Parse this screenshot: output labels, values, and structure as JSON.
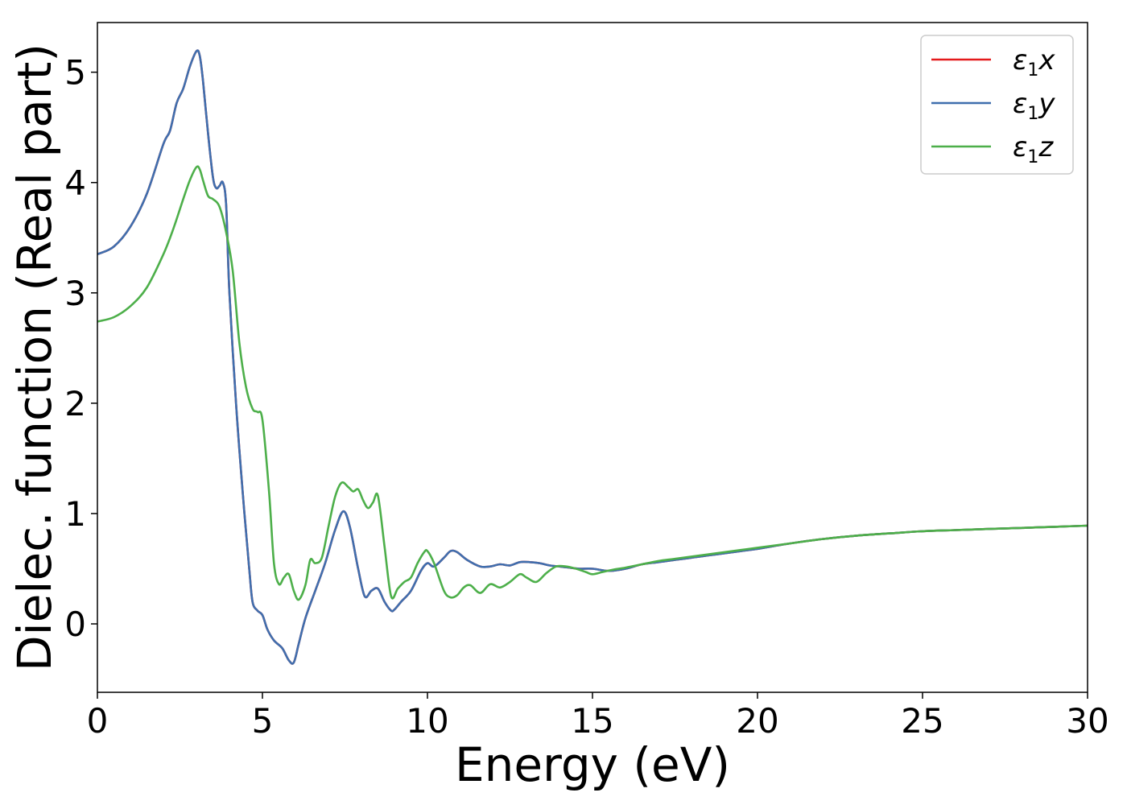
{
  "chart_data": {
    "type": "line",
    "xlabel": "Energy (eV)",
    "ylabel": "Dielec. function (Real part)",
    "xlim": [
      0,
      30
    ],
    "ylim": [
      -0.62,
      5.45
    ],
    "xticks": [
      0,
      5,
      10,
      15,
      20,
      25,
      30
    ],
    "yticks": [
      0,
      1,
      2,
      3,
      4,
      5
    ],
    "grid": false,
    "legend_position": "top-right",
    "series": [
      {
        "name": "x",
        "legend_prefix": "ε",
        "legend_sub": "1",
        "color": "#e41a1c",
        "x": [
          0,
          0.5,
          1.0,
          1.5,
          2.0,
          2.2,
          2.4,
          2.6,
          2.8,
          3.0,
          3.1,
          3.2,
          3.35,
          3.5,
          3.6,
          3.7,
          3.8,
          3.9,
          4.0,
          4.2,
          4.4,
          4.6,
          4.7,
          4.85,
          5.0,
          5.15,
          5.35,
          5.6,
          5.8,
          5.95,
          6.1,
          6.3,
          6.6,
          6.9,
          7.2,
          7.45,
          7.65,
          7.9,
          8.1,
          8.3,
          8.5,
          8.7,
          8.9,
          9.0,
          9.2,
          9.5,
          9.8,
          10.0,
          10.2,
          10.5,
          10.7,
          10.9,
          11.2,
          11.6,
          11.9,
          12.2,
          12.5,
          12.8,
          13.1,
          13.4,
          13.7,
          14.0,
          14.3,
          14.6,
          15.0,
          15.5,
          16.0,
          16.5,
          17.0,
          17.5,
          18.0,
          18.5,
          19.0,
          19.5,
          20.0,
          21.0,
          22.0,
          23.0,
          24.0,
          25.0,
          26.0,
          27.0,
          28.0,
          29.0,
          30.0
        ],
        "y": [
          3.35,
          3.42,
          3.6,
          3.9,
          4.35,
          4.47,
          4.72,
          4.85,
          5.05,
          5.19,
          5.15,
          4.92,
          4.45,
          4.05,
          3.95,
          3.97,
          4.0,
          3.8,
          3.0,
          2.0,
          1.2,
          0.5,
          0.2,
          0.12,
          0.08,
          -0.05,
          -0.15,
          -0.22,
          -0.33,
          -0.35,
          -0.18,
          0.05,
          0.3,
          0.55,
          0.85,
          1.02,
          0.88,
          0.5,
          0.25,
          0.3,
          0.32,
          0.2,
          0.12,
          0.13,
          0.2,
          0.3,
          0.48,
          0.55,
          0.52,
          0.6,
          0.66,
          0.65,
          0.58,
          0.52,
          0.52,
          0.54,
          0.53,
          0.56,
          0.56,
          0.55,
          0.53,
          0.52,
          0.51,
          0.5,
          0.5,
          0.48,
          0.5,
          0.54,
          0.56,
          0.58,
          0.6,
          0.62,
          0.64,
          0.66,
          0.68,
          0.73,
          0.77,
          0.8,
          0.82,
          0.84,
          0.85,
          0.86,
          0.87,
          0.88,
          0.89
        ]
      },
      {
        "name": "y",
        "legend_prefix": "ε",
        "legend_sub": "1",
        "color": "#3f6fae",
        "x": [
          0,
          0.5,
          1.0,
          1.5,
          2.0,
          2.2,
          2.4,
          2.6,
          2.8,
          3.0,
          3.1,
          3.2,
          3.35,
          3.5,
          3.6,
          3.7,
          3.8,
          3.9,
          4.0,
          4.2,
          4.4,
          4.6,
          4.7,
          4.85,
          5.0,
          5.15,
          5.35,
          5.6,
          5.8,
          5.95,
          6.1,
          6.3,
          6.6,
          6.9,
          7.2,
          7.45,
          7.65,
          7.9,
          8.1,
          8.3,
          8.5,
          8.7,
          8.9,
          9.0,
          9.2,
          9.5,
          9.8,
          10.0,
          10.2,
          10.5,
          10.7,
          10.9,
          11.2,
          11.6,
          11.9,
          12.2,
          12.5,
          12.8,
          13.1,
          13.4,
          13.7,
          14.0,
          14.3,
          14.6,
          15.0,
          15.5,
          16.0,
          16.5,
          17.0,
          17.5,
          18.0,
          18.5,
          19.0,
          19.5,
          20.0,
          21.0,
          22.0,
          23.0,
          24.0,
          25.0,
          26.0,
          27.0,
          28.0,
          29.0,
          30.0
        ],
        "y": [
          3.35,
          3.42,
          3.6,
          3.9,
          4.35,
          4.47,
          4.72,
          4.85,
          5.05,
          5.19,
          5.15,
          4.92,
          4.45,
          4.05,
          3.95,
          3.97,
          4.0,
          3.8,
          3.0,
          2.0,
          1.2,
          0.5,
          0.2,
          0.12,
          0.08,
          -0.05,
          -0.15,
          -0.22,
          -0.33,
          -0.35,
          -0.18,
          0.05,
          0.3,
          0.55,
          0.85,
          1.02,
          0.88,
          0.5,
          0.25,
          0.3,
          0.32,
          0.2,
          0.12,
          0.13,
          0.2,
          0.3,
          0.48,
          0.55,
          0.52,
          0.6,
          0.66,
          0.65,
          0.58,
          0.52,
          0.52,
          0.54,
          0.53,
          0.56,
          0.56,
          0.55,
          0.53,
          0.52,
          0.51,
          0.5,
          0.5,
          0.48,
          0.5,
          0.54,
          0.56,
          0.58,
          0.6,
          0.62,
          0.64,
          0.66,
          0.68,
          0.73,
          0.77,
          0.8,
          0.82,
          0.84,
          0.85,
          0.86,
          0.87,
          0.88,
          0.89
        ]
      },
      {
        "name": "z",
        "legend_prefix": "ε",
        "legend_sub": "1",
        "color": "#4daf4a",
        "x": [
          0,
          0.5,
          1.0,
          1.5,
          2.0,
          2.3,
          2.6,
          2.8,
          3.0,
          3.1,
          3.2,
          3.35,
          3.5,
          3.7,
          3.9,
          4.1,
          4.3,
          4.5,
          4.7,
          4.85,
          5.0,
          5.2,
          5.35,
          5.5,
          5.65,
          5.8,
          5.95,
          6.1,
          6.3,
          6.45,
          6.6,
          6.8,
          7.0,
          7.2,
          7.4,
          7.6,
          7.75,
          7.9,
          8.05,
          8.2,
          8.35,
          8.5,
          8.7,
          8.9,
          9.1,
          9.3,
          9.5,
          9.7,
          9.9,
          10.0,
          10.2,
          10.5,
          10.7,
          10.9,
          11.1,
          11.3,
          11.6,
          11.9,
          12.2,
          12.5,
          12.8,
          13.0,
          13.3,
          13.6,
          13.9,
          14.2,
          14.5,
          14.8,
          15.0,
          15.3,
          15.6,
          16.0,
          16.5,
          17.0,
          17.5,
          18.0,
          18.5,
          19.0,
          19.5,
          20.0,
          21.0,
          22.0,
          23.0,
          24.0,
          25.0,
          26.0,
          27.0,
          28.0,
          29.0,
          30.0
        ],
        "y": [
          2.74,
          2.78,
          2.88,
          3.05,
          3.35,
          3.58,
          3.85,
          4.02,
          4.14,
          4.12,
          4.02,
          3.88,
          3.85,
          3.78,
          3.55,
          3.2,
          2.55,
          2.15,
          1.95,
          1.92,
          1.85,
          1.2,
          0.55,
          0.36,
          0.42,
          0.45,
          0.3,
          0.22,
          0.35,
          0.58,
          0.55,
          0.6,
          0.88,
          1.15,
          1.28,
          1.24,
          1.2,
          1.22,
          1.12,
          1.05,
          1.1,
          1.16,
          0.7,
          0.25,
          0.32,
          0.38,
          0.42,
          0.55,
          0.65,
          0.66,
          0.55,
          0.3,
          0.24,
          0.26,
          0.33,
          0.35,
          0.28,
          0.36,
          0.33,
          0.38,
          0.45,
          0.42,
          0.38,
          0.46,
          0.52,
          0.52,
          0.5,
          0.47,
          0.45,
          0.47,
          0.49,
          0.51,
          0.54,
          0.57,
          0.59,
          0.61,
          0.63,
          0.65,
          0.67,
          0.69,
          0.73,
          0.77,
          0.8,
          0.82,
          0.84,
          0.85,
          0.86,
          0.87,
          0.88,
          0.89
        ]
      }
    ]
  }
}
